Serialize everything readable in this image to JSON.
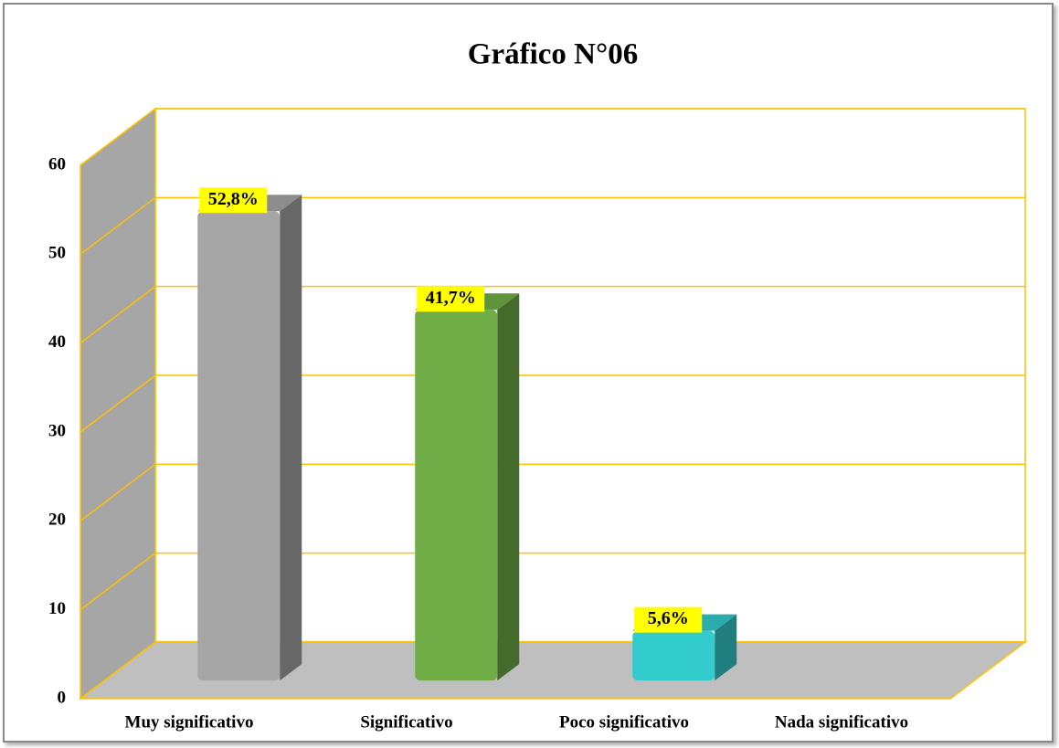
{
  "chart_data": {
    "type": "bar3d",
    "title": "Gráfico N°06",
    "categories": [
      "Muy significativo",
      "Significativo",
      "Poco significativo",
      "Nada significativo"
    ],
    "values": [
      52.8,
      41.7,
      5.6,
      0
    ],
    "value_labels": [
      "52,8%",
      "41,7%",
      "5,6%",
      null
    ],
    "colors": [
      "#a6a6a6",
      "#70ad47",
      "#33cccc",
      null
    ],
    "ylim": [
      0,
      60
    ],
    "yticks": [
      0,
      10,
      20,
      30,
      40,
      50,
      60
    ],
    "grid": true
  }
}
